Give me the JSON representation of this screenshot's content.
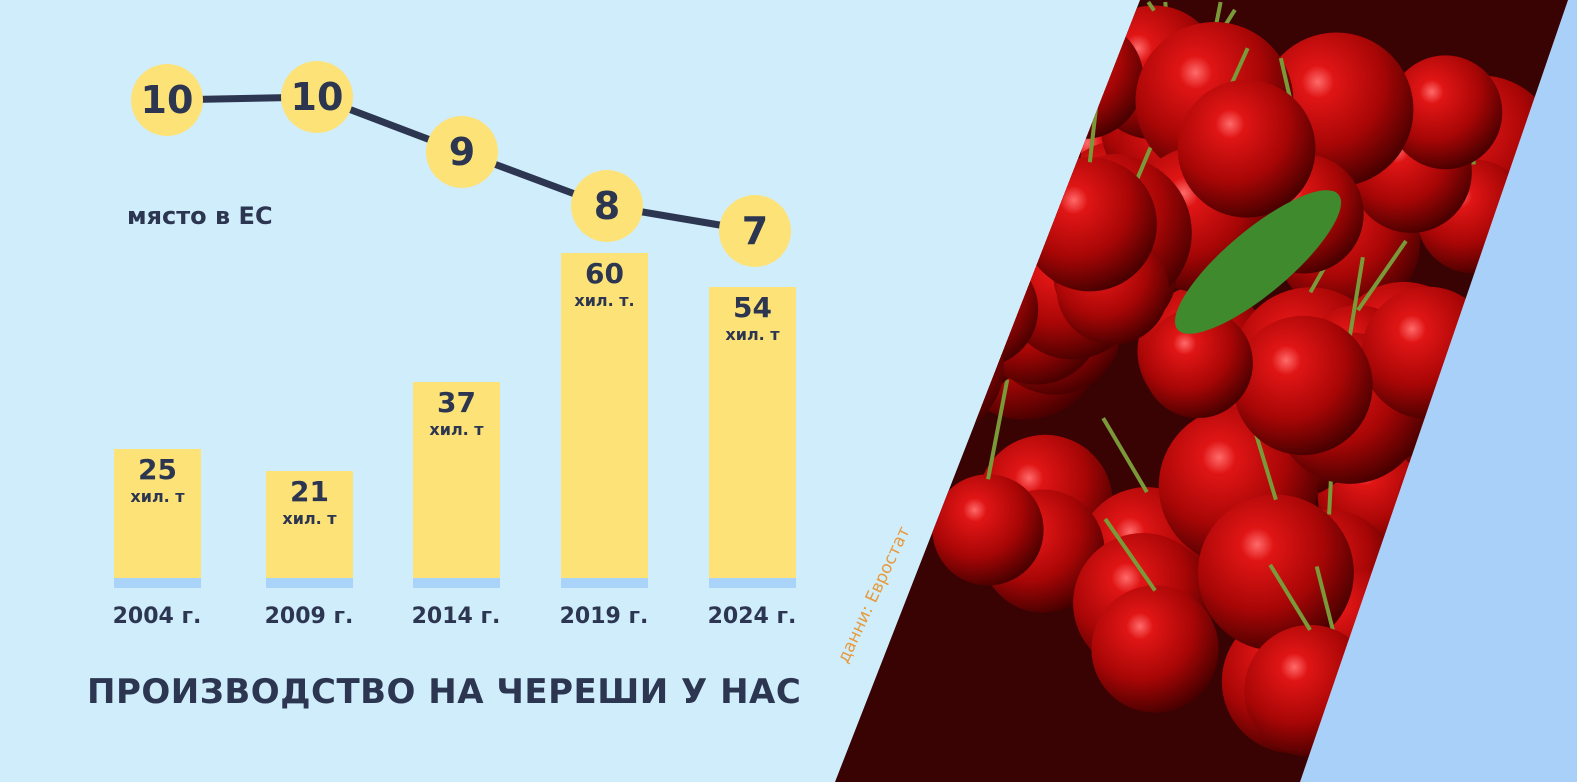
{
  "chart_data": {
    "type": "bar",
    "title": "ПРОИЗВОДСТВО НА ЧЕРЕШИ У НАС",
    "categories": [
      "2004 г.",
      "2009 г.",
      "2014 г.",
      "2019 г.",
      "2024 г."
    ],
    "values": [
      25,
      21,
      37,
      60,
      54
    ],
    "value_units": [
      "хил. т",
      "хил. т",
      "хил. т",
      "хил. т.",
      "хил. т"
    ],
    "rank_series": {
      "label": "място в ЕС",
      "values": [
        10,
        10,
        9,
        8,
        7
      ]
    },
    "source": "данни: Евростат",
    "colors": {
      "background": "#d0edfc",
      "bar": "#fde277",
      "line": "#2d3650",
      "text": "#2d3650",
      "source": "#e69a3c",
      "accent_strip": "#a9d3f9"
    }
  }
}
